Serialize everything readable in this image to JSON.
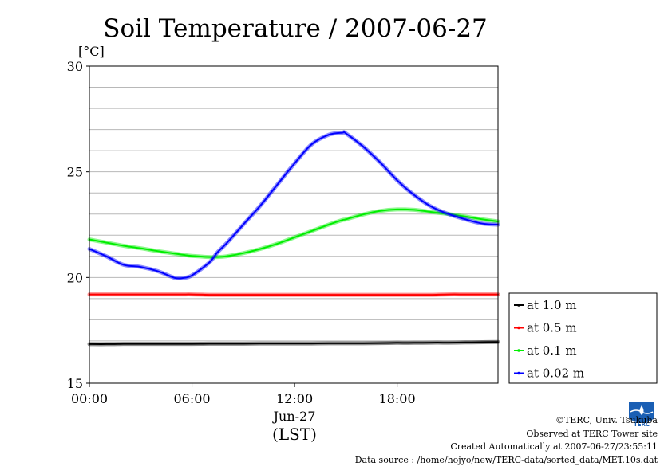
{
  "chart_data": {
    "type": "line",
    "title": "Soil Temperature / 2007-06-27",
    "ylabel": "[°C]",
    "xlabel": "(LST)",
    "x_date_label": "Jun-27",
    "ylim": [
      15,
      30
    ],
    "xlim": [
      0,
      23.9
    ],
    "y_ticks": [
      "15",
      "20",
      "25",
      "30"
    ],
    "x_ticks": [
      {
        "hour": 0,
        "label": "00:00"
      },
      {
        "hour": 6,
        "label": "06:00"
      },
      {
        "hour": 12,
        "label": "12:00"
      },
      {
        "hour": 18,
        "label": "18:00"
      }
    ],
    "grid": true,
    "legend_position": "bottom-right outside",
    "x": [
      0,
      1,
      2,
      3,
      4,
      5,
      5.5,
      6,
      7,
      7.5,
      8,
      9,
      10,
      11,
      12,
      13,
      14,
      14.8,
      15,
      16,
      17,
      18,
      19,
      20,
      21,
      22,
      23,
      23.9
    ],
    "series": [
      {
        "name": "at 1.0 m",
        "color": "#000000",
        "values": [
          16.85,
          16.85,
          16.86,
          16.86,
          16.86,
          16.86,
          16.86,
          16.86,
          16.87,
          16.87,
          16.87,
          16.87,
          16.88,
          16.88,
          16.88,
          16.88,
          16.89,
          16.89,
          16.89,
          16.89,
          16.9,
          16.91,
          16.91,
          16.92,
          16.92,
          16.93,
          16.94,
          16.95
        ]
      },
      {
        "name": "at 0.5 m",
        "color": "#ff0000",
        "values": [
          19.2,
          19.2,
          19.2,
          19.2,
          19.2,
          19.2,
          19.2,
          19.2,
          19.18,
          19.18,
          19.18,
          19.18,
          19.18,
          19.18,
          19.18,
          19.18,
          19.18,
          19.18,
          19.18,
          19.18,
          19.18,
          19.18,
          19.18,
          19.18,
          19.2,
          19.2,
          19.2,
          19.2
        ]
      },
      {
        "name": "at 0.1 m",
        "color": "#00ee00",
        "values": [
          21.8,
          21.65,
          21.5,
          21.38,
          21.25,
          21.13,
          21.07,
          21.02,
          20.97,
          20.97,
          21.0,
          21.15,
          21.35,
          21.6,
          21.9,
          22.2,
          22.5,
          22.72,
          22.75,
          22.98,
          23.15,
          23.22,
          23.2,
          23.1,
          23.0,
          22.88,
          22.75,
          22.65
        ]
      },
      {
        "name": "at 0.02 m",
        "color": "#0000ff",
        "values": [
          21.35,
          21.0,
          20.6,
          20.5,
          20.3,
          19.98,
          19.98,
          20.1,
          20.7,
          21.2,
          21.6,
          22.5,
          23.4,
          24.4,
          25.4,
          26.3,
          26.75,
          26.85,
          26.82,
          26.2,
          25.45,
          24.6,
          23.9,
          23.35,
          23.0,
          22.75,
          22.55,
          22.5
        ]
      }
    ]
  },
  "footer": {
    "copyright": "©TERC, Univ. Tsukuba",
    "observed": "Observed at TERC Tower site",
    "created": "Created Automatically at 2007-06-27/23:55:11",
    "source": "Data source : /home/hojyo/new/TERC-data/sorted_data/MET.10s.dat"
  },
  "logo": {
    "text": "TERC",
    "color": "#1a5fb4"
  }
}
